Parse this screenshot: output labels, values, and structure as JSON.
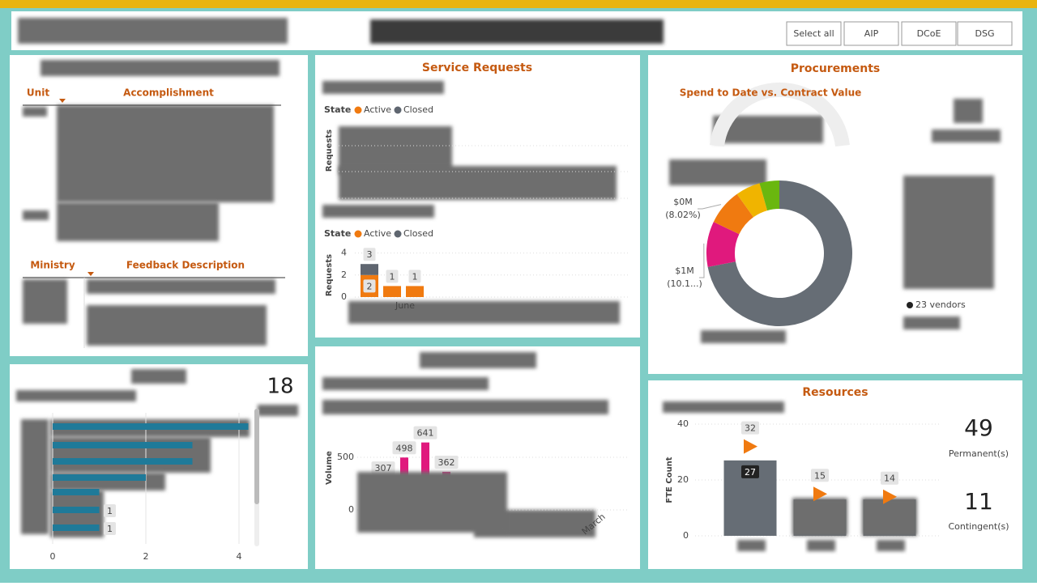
{
  "header": {
    "buttons": [
      "Select all",
      "AIP",
      "DCoE",
      "DSG"
    ]
  },
  "accomplishments": {
    "columns": [
      "Unit",
      "Accomplishment"
    ]
  },
  "feedback": {
    "columns": [
      "Ministry",
      "Feedback Description"
    ]
  },
  "projects_card": {
    "value": 18
  },
  "vendors_note": "23 vendors",
  "resources_cards": [
    {
      "value": 49,
      "label": "Permanent(s)"
    },
    {
      "value": 11,
      "label": "Contingent(s)"
    }
  ],
  "chart_data": [
    {
      "type": "hbar",
      "categories": [
        null,
        null,
        null,
        null,
        null,
        null,
        null
      ],
      "values": [
        4.2,
        3,
        3,
        2,
        1,
        1,
        1
      ],
      "value_labels": [
        null,
        null,
        null,
        null,
        null,
        "1",
        "1"
      ],
      "color": "#1f7a99",
      "xlim": [
        0,
        4.3
      ],
      "xticks": [
        0,
        2,
        4
      ],
      "grid": true
    },
    {
      "type": "stacked-bar",
      "title": "Service Requests",
      "legend_title": "State",
      "y_label": "Requests",
      "categories": [
        null,
        "June",
        null
      ],
      "series": [
        {
          "name": "Active",
          "color": "#f07a10",
          "values": [
            2,
            1,
            1
          ]
        },
        {
          "name": "Closed",
          "color": "#5f6670",
          "values": [
            1,
            null,
            null
          ]
        }
      ],
      "totals": [
        3,
        1,
        1
      ],
      "ylim": [
        0,
        4.3
      ],
      "yticks": [
        0,
        2,
        4
      ],
      "grid": true
    },
    {
      "type": "bar",
      "y_label": "Volume",
      "categories": [
        null,
        null,
        null,
        null,
        null,
        null,
        null,
        null,
        null,
        null,
        "March"
      ],
      "values": [
        307,
        498,
        641,
        362,
        null,
        null,
        null,
        null,
        null,
        null,
        null
      ],
      "color": "#e0197d",
      "ylim": [
        -200,
        850
      ],
      "yticks": [
        0,
        500
      ],
      "grid": true
    },
    {
      "type": "pie",
      "title": "Procurements",
      "subtitle": "Spend to Date vs. Contract Value",
      "categories": [
        null,
        null,
        null,
        null,
        null
      ],
      "values": [
        72,
        10.1,
        8.02,
        5.5,
        4.38
      ],
      "value_labels": [
        null,
        "$1M (10.1...)",
        "$0M (8.02%)",
        null,
        null
      ],
      "colors": [
        "#666d75",
        "#e0197d",
        "#f07a10",
        "#f0b400",
        "#6ab70f"
      ]
    },
    {
      "type": "bar-target",
      "title": "Resources",
      "y_label": "FTE Count",
      "categories": [
        null,
        null,
        null
      ],
      "values": [
        27,
        13,
        13
      ],
      "targets": [
        32,
        15,
        14
      ],
      "color": "#666d75",
      "target_color": "#f07a10",
      "ylim": [
        0,
        43
      ],
      "yticks": [
        0,
        20,
        40
      ],
      "grid": true
    }
  ]
}
